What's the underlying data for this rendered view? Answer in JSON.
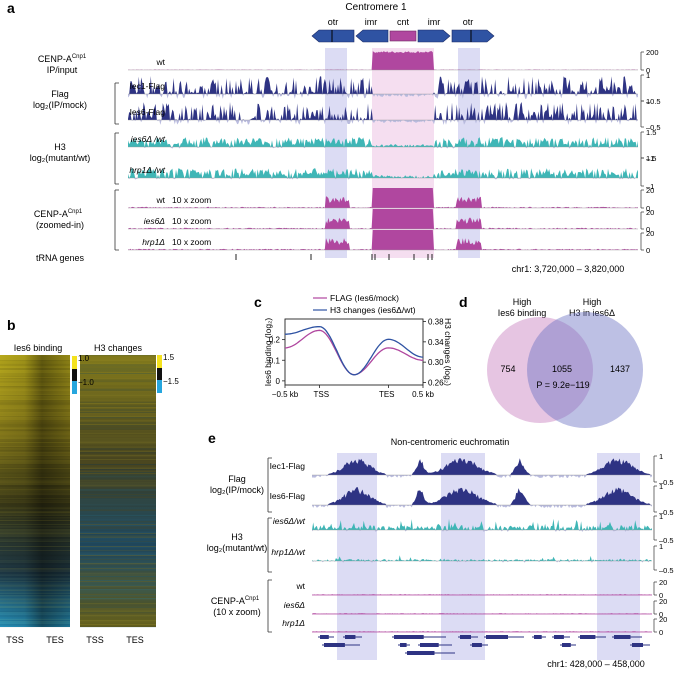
{
  "panel_a": {
    "letter": "a",
    "centromere_title": "Centromere 1",
    "region_labels": [
      "otr",
      "imr",
      "cnt",
      "imr",
      "otr"
    ],
    "group_labels": {
      "cenpa_line1": "CENP-A",
      "cenpa_sup": "Cnp1",
      "cenpa_line2": "IP/input",
      "flag_line1": "Flag",
      "flag_line2": "log₂(IP/mock)",
      "h3_line1": "H3",
      "h3_line2": "log₂(mutant/wt)",
      "zoom_line1": "CENP-A",
      "zoom_sup": "Cnp1",
      "zoom_line2": "(zoomed-in)",
      "trna": "tRNA genes"
    },
    "tracks": [
      {
        "label": "wt",
        "scale_top": "200",
        "scale_bottom": "0",
        "color": "#b0479f"
      },
      {
        "label": "Iec1-Flag",
        "scale_top": "1",
        "scale_bottom": "–0.5",
        "color": "#2e3383"
      },
      {
        "label": "Ies6-Flag",
        "scale_top": "1",
        "scale_bottom": "–0.5",
        "color": "#2e3383"
      },
      {
        "label": "ies6Δ /wt",
        "scale_top": "1.5",
        "scale_bottom": "–1",
        "color": "#3fb6b6"
      },
      {
        "label": "hrp1Δ /wt",
        "scale_top": "1.5",
        "scale_bottom": "–1",
        "color": "#3fb6b6"
      },
      {
        "label": "wt",
        "zoom": "10 x zoom",
        "scale_top": "20",
        "scale_bottom": "0",
        "color": "#b0479f"
      },
      {
        "label": "ies6Δ",
        "zoom": "10 x zoom",
        "scale_top": "20",
        "scale_bottom": "0",
        "color": "#b0479f"
      },
      {
        "label": "hrp1Δ",
        "zoom": "10 x zoom",
        "scale_top": "20",
        "scale_bottom": "0",
        "color": "#b0479f"
      }
    ],
    "coordinates": "chr1: 3,720,000 – 3,820,000"
  },
  "panel_b": {
    "letter": "b",
    "heatmap1_title": "Ies6 binding",
    "heatmap2_title": "H3 changes",
    "scale1": [
      "1.0",
      "−1.0"
    ],
    "scale2": [
      "1.5",
      "−1.5"
    ],
    "xlabels": [
      "TSS",
      "TES"
    ]
  },
  "panel_c": {
    "letter": "c",
    "legend": [
      "FLAG (Ies6/mock)",
      "H3 changes (ies6Δ/wt)"
    ],
    "ylabel_left": "Ies6 binding (log₂)",
    "ylabel_right": "H3 changes (log₂)",
    "xticks": [
      "−0.5 kb",
      "TSS",
      "TES",
      "0.5 kb"
    ],
    "yticks_left": [
      "0.2",
      "0.1",
      "0"
    ],
    "yticks_right": [
      "0.38",
      "0.34",
      "0.30",
      "0.26"
    ]
  },
  "chart_data": {
    "type": "line",
    "title": "",
    "x": [
      -0.5,
      0,
      0.5,
      1,
      1.5
    ],
    "xlabels": [
      "−0.5 kb",
      "TSS",
      "TES",
      "0.5 kb"
    ],
    "series": [
      {
        "name": "FLAG (Ies6/mock)",
        "axis": "left",
        "color": "#b0479f",
        "values": [
          0.16,
          0.245,
          0.03,
          0.16,
          0.1
        ]
      },
      {
        "name": "H3 changes (ies6Δ/wt)",
        "axis": "right",
        "color": "#2f53a3",
        "values": [
          0.355,
          0.37,
          0.275,
          0.345,
          0.31
        ]
      }
    ],
    "ylabel": "Ies6 binding (log₂)",
    "ylabel_right": "H3 changes (log₂)",
    "ylim": [
      -0.02,
      0.3
    ],
    "ylim_right": [
      0.255,
      0.385
    ]
  },
  "panel_d": {
    "letter": "d",
    "left_title": [
      "High",
      "Ies6 binding"
    ],
    "right_title": [
      "High",
      "H3 in ies6Δ"
    ],
    "left_only": "754",
    "overlap": "1055",
    "right_only": "1437",
    "pvalue": "P = 9.2e−119"
  },
  "panel_e": {
    "letter": "e",
    "title": "Non-centromeric euchromatin",
    "group_labels": {
      "flag_line1": "Flag",
      "flag_line2": "log₂(IP/mock)",
      "h3_line1": "H3",
      "h3_line2": "log₂(mutant/wt)",
      "cenpa_line1": "CENP-A",
      "cenpa_sup": "Cnp1",
      "cenpa_line2": "(10 x zoom)"
    },
    "tracks": [
      {
        "label": "Iec1-Flag",
        "scale_top": "1",
        "scale_bottom": "–0.5",
        "color": "#2e3383"
      },
      {
        "label": "Ies6-Flag",
        "scale_top": "1",
        "scale_bottom": "–0.5",
        "color": "#2e3383"
      },
      {
        "label": "ies6Δ/wt",
        "scale_top": "1",
        "scale_bottom": "–0.5",
        "color": "#3fb6b6"
      },
      {
        "label": "hrp1Δ/wt",
        "scale_top": "1",
        "scale_bottom": "–0.5",
        "color": "#3fb6b6"
      },
      {
        "label": "wt",
        "scale_top": "20",
        "scale_bottom": "0",
        "color": "#b0479f"
      },
      {
        "label": "ies6Δ",
        "scale_top": "20",
        "scale_bottom": "0",
        "color": "#b0479f"
      },
      {
        "label": "hrp1Δ",
        "scale_top": "20",
        "scale_bottom": "0",
        "color": "#b0479f"
      }
    ],
    "coordinates": "chr1: 428,000 – 458,000"
  },
  "colors": {
    "magenta": "#b0479f",
    "navy": "#2e3383",
    "teal": "#3fb6b6",
    "blue": "#2f53a3",
    "highlight": "#d9daf4",
    "pinkhl": "#f3dcef"
  }
}
